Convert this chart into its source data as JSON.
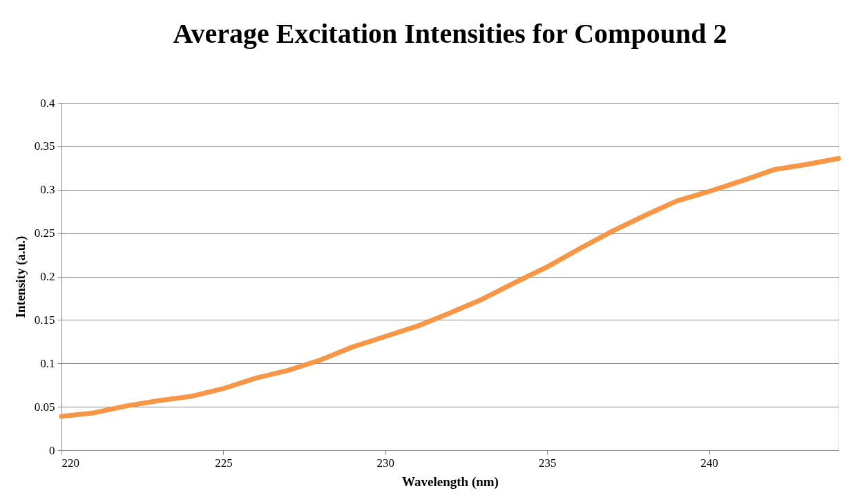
{
  "chart_data": {
    "type": "line",
    "title": "Average Excitation Intensities for Compound 2",
    "xlabel": "Wavelength (nm)",
    "ylabel": "Intensity (a.u.)",
    "x": [
      220,
      221,
      222,
      223,
      224,
      225,
      226,
      227,
      228,
      229,
      230,
      231,
      232,
      233,
      234,
      235,
      236,
      237,
      238,
      239,
      240,
      241,
      242,
      243,
      244
    ],
    "series": [
      {
        "color": "#f79646",
        "values": [
          0.039,
          0.043,
          0.051,
          0.057,
          0.062,
          0.071,
          0.083,
          0.092,
          0.104,
          0.119,
          0.131,
          0.143,
          0.158,
          0.174,
          0.193,
          0.211,
          0.232,
          0.252,
          0.27,
          0.287,
          0.298,
          0.31,
          0.323,
          0.329,
          0.336
        ]
      }
    ],
    "xlim": [
      220,
      244
    ],
    "xticks": [
      220,
      225,
      230,
      235,
      240
    ],
    "ylim": [
      0,
      0.4
    ],
    "yticks": [
      0,
      0.05,
      0.1,
      0.15,
      0.2,
      0.25,
      0.3,
      0.35,
      0.4
    ],
    "grid": "y",
    "marker": "none",
    "line_style": "solid"
  }
}
